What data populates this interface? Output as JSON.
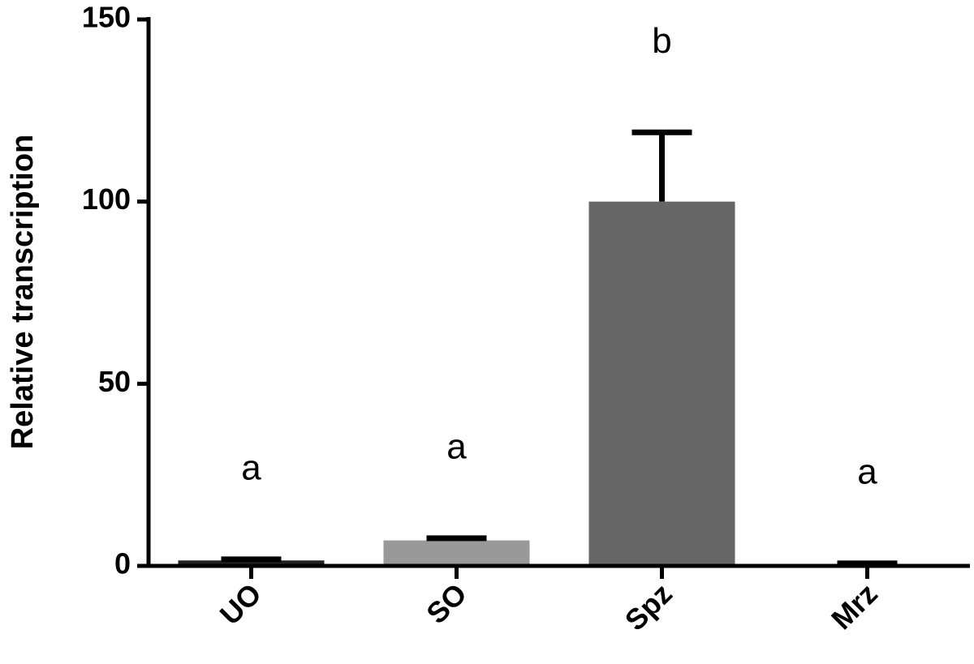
{
  "chart_data": {
    "type": "bar",
    "y_label": "Relative transcription",
    "categories": [
      "UO",
      "SO",
      "Spz",
      "Mrz"
    ],
    "values": [
      1.5,
      7,
      100,
      0.5
    ],
    "errors": [
      0.3,
      0.6,
      19,
      0.2
    ],
    "colors": [
      "#222222",
      "#999999",
      "#666666",
      "#cccccc"
    ],
    "significance": [
      "a",
      "a",
      "b",
      "a"
    ],
    "ylim": [
      0,
      150
    ],
    "yticks": [
      0,
      50,
      100,
      150
    ]
  }
}
